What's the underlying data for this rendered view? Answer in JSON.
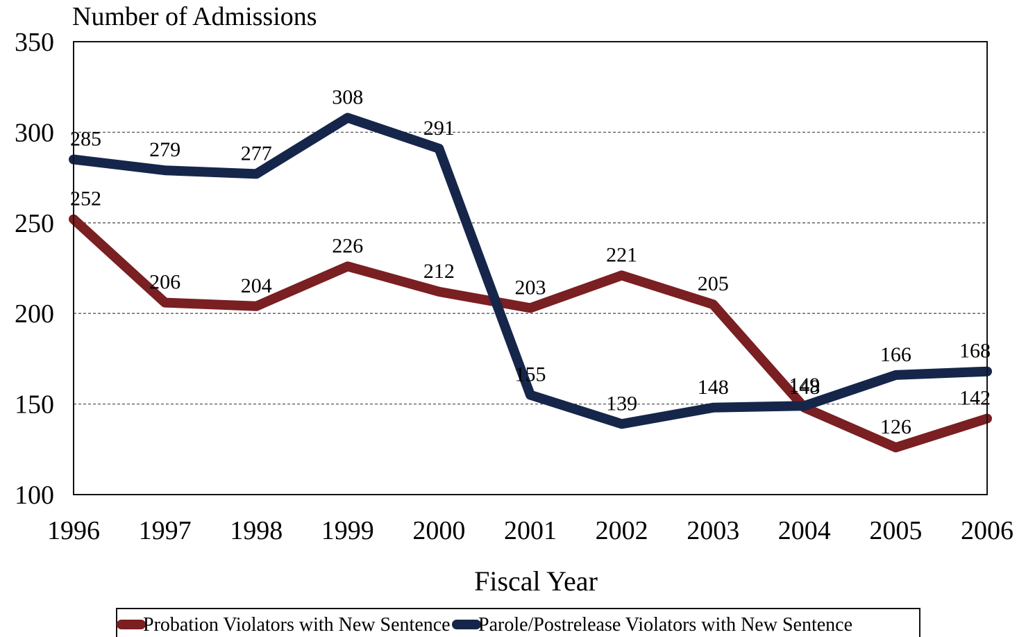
{
  "chart_data": {
    "type": "line",
    "title": "",
    "ylabel": "Number of Admissions",
    "xlabel": "Fiscal Year",
    "categories": [
      "1996",
      "1997",
      "1998",
      "1999",
      "2000",
      "2001",
      "2002",
      "2003",
      "2004",
      "2005",
      "2006"
    ],
    "ylim": [
      100,
      350
    ],
    "yticks": [
      "100",
      "150",
      "200",
      "250",
      "300",
      "350"
    ],
    "grid": "horizontal dashed",
    "legend_position": "bottom",
    "series": [
      {
        "name": "Probation Violators with New Sentence",
        "color": "#7a1f22",
        "values": [
          252,
          206,
          204,
          226,
          212,
          203,
          221,
          205,
          148,
          126,
          142
        ],
        "labels": [
          "252",
          "206",
          "204",
          "226",
          "212",
          "203",
          "221",
          "205",
          "148",
          "126",
          "142"
        ]
      },
      {
        "name": "Parole/Postrelease Violators with New Sentence",
        "color": "#16264a",
        "values": [
          285,
          279,
          277,
          308,
          291,
          155,
          139,
          148,
          149,
          166,
          168
        ],
        "labels": [
          "285",
          "279",
          "277",
          "308",
          "291",
          "155",
          "139",
          "148",
          "149",
          "166",
          "168"
        ]
      }
    ]
  }
}
